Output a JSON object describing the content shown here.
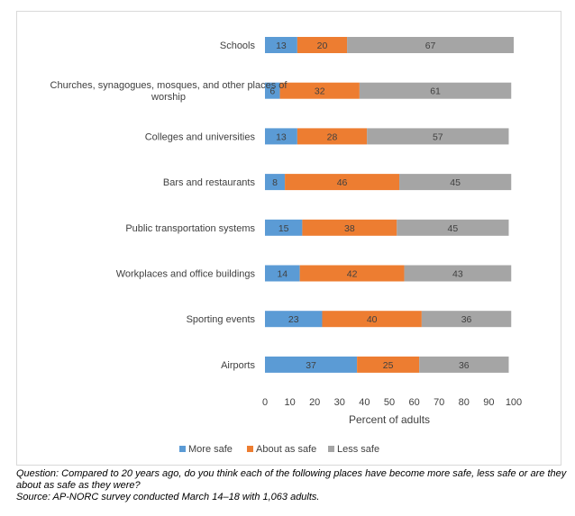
{
  "chart_data": {
    "type": "bar",
    "orientation": "horizontal",
    "stacked": true,
    "categories": [
      "Schools",
      "Churches, synagogues, mosques, and other places of worship",
      "Colleges and universities",
      "Bars and restaurants",
      "Public transportation systems",
      "Workplaces and office buildings",
      "Sporting events",
      "Airports"
    ],
    "category_label_lines": [
      [
        "Schools"
      ],
      [
        "Churches, synagogues, mosques, and other places of",
        "worship"
      ],
      [
        "Colleges and universities"
      ],
      [
        "Bars and restaurants"
      ],
      [
        "Public transportation systems"
      ],
      [
        "Workplaces and office buildings"
      ],
      [
        "Sporting events"
      ],
      [
        "Airports"
      ]
    ],
    "series": [
      {
        "name": "More safe",
        "color": "#5b9bd5",
        "values": [
          13,
          6,
          13,
          8,
          15,
          14,
          23,
          37
        ]
      },
      {
        "name": "About as safe",
        "color": "#ed7d31",
        "values": [
          20,
          32,
          28,
          46,
          38,
          42,
          40,
          25
        ]
      },
      {
        "name": "Less safe",
        "color": "#a5a5a5",
        "values": [
          67,
          61,
          57,
          45,
          45,
          43,
          36,
          36
        ]
      }
    ],
    "xlabel": "Percent of adults",
    "ylabel": "",
    "xlim": [
      0,
      100
    ],
    "xticks": [
      0,
      10,
      20,
      30,
      40,
      50,
      60,
      70,
      80,
      90,
      100
    ],
    "grid": false,
    "legend_position": "bottom"
  },
  "caption": {
    "question_line1": "Question: Compared to 20 years ago, do you think each of the following places have become more safe, less safe or are they",
    "question_line2": "about as safe as they were?",
    "source": "Source: AP-NORC survey conducted March 14–18 with 1,063 adults."
  }
}
